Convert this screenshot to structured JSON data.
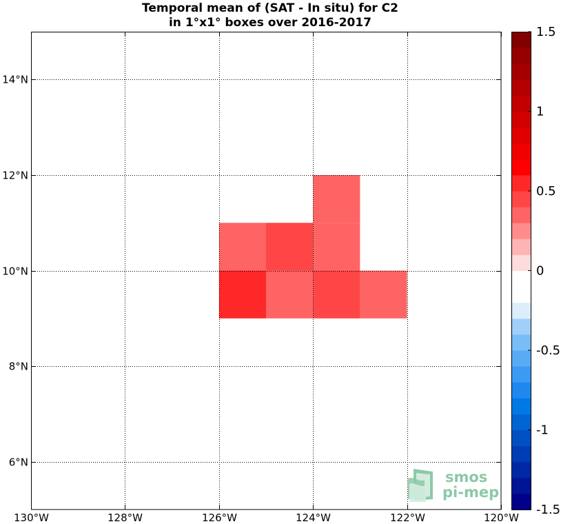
{
  "title": {
    "line1": "Temporal mean of (SAT - In situ) for C2",
    "line2": "in 1°x1° boxes over 2016-2017"
  },
  "chart_data": {
    "type": "heatmap",
    "title": "Temporal mean of (SAT - In situ) for C2 in 1°x1° boxes over 2016-2017",
    "xlim": [
      -130,
      -120
    ],
    "ylim": [
      5,
      15
    ],
    "grid": true,
    "x_ticks": [
      {
        "value": -130,
        "label": "130°W"
      },
      {
        "value": -128,
        "label": "128°W"
      },
      {
        "value": -126,
        "label": "126°W"
      },
      {
        "value": -124,
        "label": "124°W"
      },
      {
        "value": -122,
        "label": "122°W"
      },
      {
        "value": -120,
        "label": "120°W"
      }
    ],
    "y_ticks": [
      {
        "value": 6,
        "label": "6°N"
      },
      {
        "value": 8,
        "label": "8°N"
      },
      {
        "value": 10,
        "label": "10°N"
      },
      {
        "value": 12,
        "label": "12°N"
      },
      {
        "value": 14,
        "label": "14°N"
      }
    ],
    "cells": [
      {
        "lon": -126,
        "lat": 9,
        "value": 0.5
      },
      {
        "lon": -125,
        "lat": 9,
        "value": 0.3
      },
      {
        "lon": -124,
        "lat": 9,
        "value": 0.4
      },
      {
        "lon": -123,
        "lat": 9,
        "value": 0.3
      },
      {
        "lon": -126,
        "lat": 10,
        "value": 0.3
      },
      {
        "lon": -125,
        "lat": 10,
        "value": 0.4
      },
      {
        "lon": -124,
        "lat": 10,
        "value": 0.3
      },
      {
        "lon": -123,
        "lat": 10,
        "value": -0.1
      },
      {
        "lon": -124,
        "lat": 11,
        "value": 0.3
      }
    ],
    "colorbar": {
      "range": [
        -1.5,
        1.5
      ],
      "position": "right",
      "ticks": [
        {
          "value": 1.5,
          "label": "1.5"
        },
        {
          "value": 1,
          "label": "1"
        },
        {
          "value": 0.5,
          "label": "0.5"
        },
        {
          "value": 0,
          "label": "0"
        },
        {
          "value": -0.5,
          "label": "-0.5"
        },
        {
          "value": -1,
          "label": "-1"
        },
        {
          "value": -1.5,
          "label": "-1.5"
        }
      ],
      "colors": [
        "#00008a",
        "#001496",
        "#0028a5",
        "#003cb4",
        "#0050c3",
        "#0064d2",
        "#0078e6",
        "#1e88ee",
        "#3c9af2",
        "#5aabf5",
        "#78bcf8",
        "#a0d0fa",
        "#dceefc",
        "#ffffff",
        "#ffffff",
        "#fddcdc",
        "#ffb4b4",
        "#ff8c8c",
        "#ff6464",
        "#ff4646",
        "#ff2828",
        "#ff0000",
        "#f00000",
        "#e10000",
        "#d20000",
        "#c30000",
        "#b40000",
        "#a50000",
        "#960000",
        "#820000"
      ]
    }
  },
  "logo": {
    "line1": "smos",
    "line2": "pi-mep",
    "icon": "smos-pimep-logo-icon",
    "colors": [
      "#8cc9a7",
      "#d4ecdf"
    ]
  }
}
